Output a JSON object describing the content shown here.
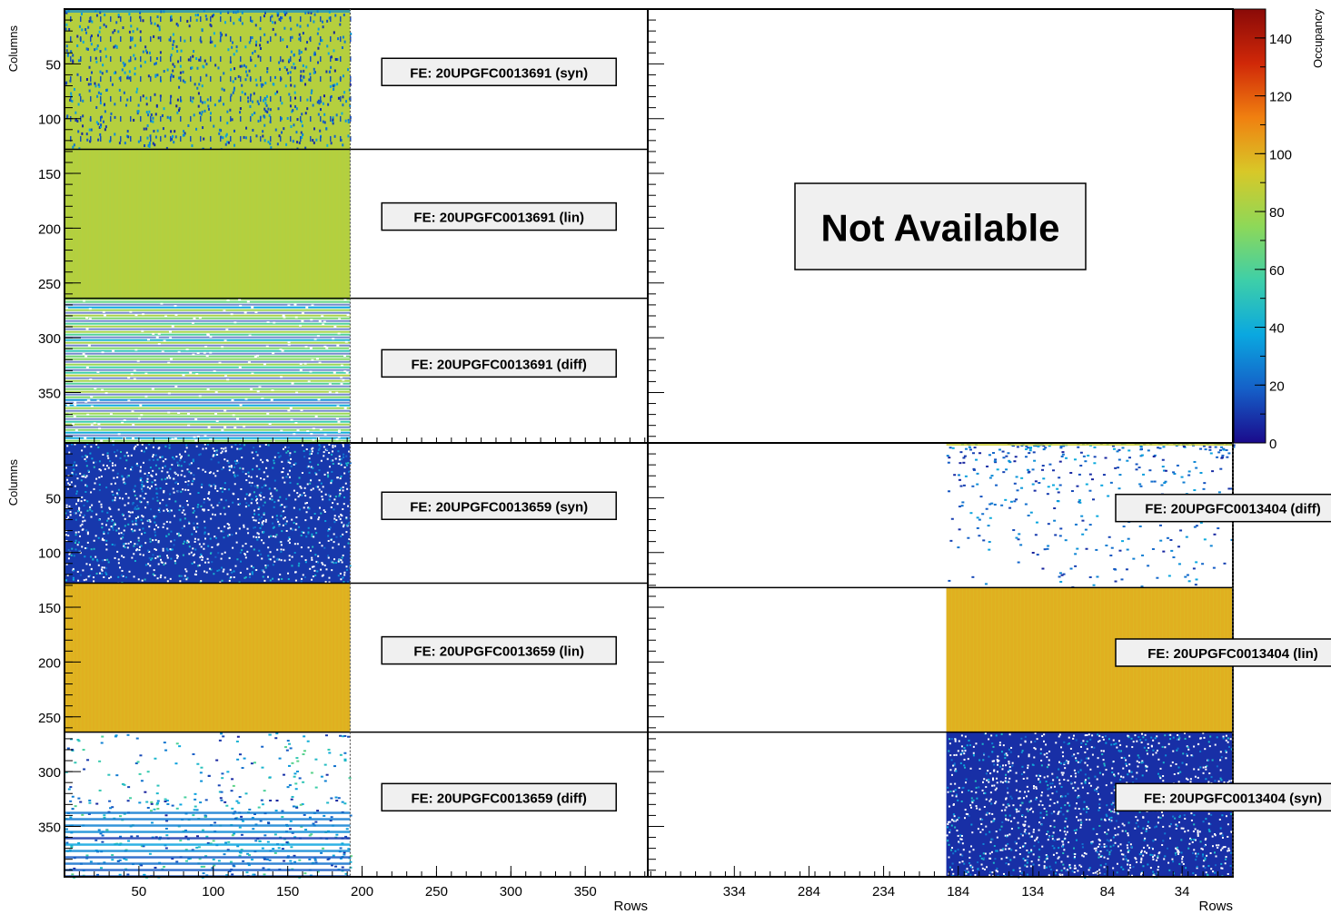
{
  "figure": {
    "y_axis_title": "Columns",
    "x_axis_title": "Rows",
    "colorbar_title": "Occupancy",
    "not_available_text": "Not Available"
  },
  "colorbar": {
    "min": 0,
    "max": 150,
    "ticks": [
      0,
      20,
      40,
      60,
      80,
      100,
      120,
      140
    ],
    "palette": [
      "#1a0a8c",
      "#1560c8",
      "#0aa8e0",
      "#3ecfa8",
      "#8ed858",
      "#d8c828",
      "#f08010",
      "#d02808",
      "#8a0a08"
    ]
  },
  "chart_data": [
    {
      "type": "heatmap",
      "title": "",
      "xlabel": "Rows",
      "ylabel": "Columns",
      "xlim": [
        0,
        392
      ],
      "ylim": [
        0,
        396
      ],
      "x_ticks": [
        50,
        100,
        150,
        200,
        250,
        300,
        350
      ],
      "y_ticks": [
        50,
        100,
        150,
        200,
        250,
        300,
        350
      ],
      "colorbar_label": "Occupancy",
      "zlim": [
        0,
        150
      ],
      "chips": [
        {
          "label": "FE: 20UPGFC0013691 (syn)",
          "data_rows": [
            0,
            192
          ],
          "data_cols": [
            0,
            128
          ],
          "pattern": "dense-with-column-gaps",
          "typical_occupancy": 85
        },
        {
          "label": "FE: 20UPGFC0013691 (lin)",
          "data_rows": [
            0,
            192
          ],
          "data_cols": [
            128,
            264
          ],
          "pattern": "uniform",
          "typical_occupancy": 85
        },
        {
          "label": "FE: 20UPGFC0013691 (diff)",
          "data_rows": [
            0,
            192
          ],
          "data_cols": [
            264,
            396
          ],
          "pattern": "striped",
          "typical_occupancy": 30
        }
      ]
    },
    {
      "type": "heatmap",
      "title": "",
      "status": "Not Available",
      "ylim": [
        0,
        396
      ]
    },
    {
      "type": "heatmap",
      "title": "",
      "xlabel": "Rows",
      "ylabel": "Columns",
      "xlim": [
        0,
        392
      ],
      "ylim": [
        0,
        396
      ],
      "x_ticks": [
        50,
        100,
        150,
        200,
        250,
        300,
        350
      ],
      "y_ticks": [
        50,
        100,
        150,
        200,
        250,
        300,
        350
      ],
      "zlim": [
        0,
        150
      ],
      "chips": [
        {
          "label": "FE: 20UPGFC0013659 (syn)",
          "data_rows": [
            0,
            192
          ],
          "data_cols": [
            0,
            128
          ],
          "pattern": "dense-low",
          "typical_occupancy": 10
        },
        {
          "label": "FE: 20UPGFC0013659 (lin)",
          "data_rows": [
            0,
            192
          ],
          "data_cols": [
            128,
            264
          ],
          "pattern": "uniform",
          "typical_occupancy": 100
        },
        {
          "label": "FE: 20UPGFC0013659 (diff)",
          "data_rows": [
            0,
            192
          ],
          "data_cols": [
            264,
            396
          ],
          "pattern": "sparse-striped",
          "typical_occupancy": 15
        }
      ]
    },
    {
      "type": "heatmap",
      "title": "",
      "xlabel": "Rows",
      "x_reversed": true,
      "xlim": [
        392,
        0
      ],
      "ylim": [
        0,
        396
      ],
      "x_ticks": [
        334,
        284,
        234,
        184,
        134,
        84,
        34
      ],
      "zlim": [
        0,
        150
      ],
      "chips": [
        {
          "label": "FE: 20UPGFC0013404 (diff)",
          "data_rows": [
            192,
            0
          ],
          "data_cols": [
            0,
            132
          ],
          "pattern": "sparse",
          "typical_occupancy": 10
        },
        {
          "label": "FE: 20UPGFC0013404 (lin)",
          "data_rows": [
            192,
            0
          ],
          "data_cols": [
            132,
            264
          ],
          "pattern": "uniform",
          "typical_occupancy": 100
        },
        {
          "label": "FE: 20UPGFC0013404 (syn)",
          "data_rows": [
            192,
            0
          ],
          "data_cols": [
            264,
            396
          ],
          "pattern": "dense-low",
          "typical_occupancy": 8
        }
      ]
    }
  ]
}
